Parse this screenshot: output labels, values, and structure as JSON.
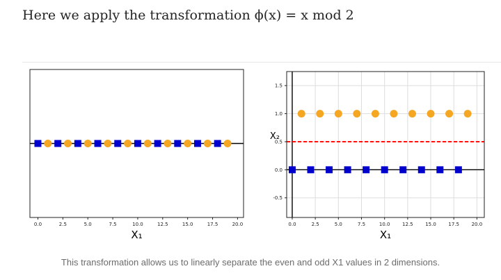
{
  "article": {
    "heading": "Here we apply the transformation ϕ(x) = x mod 2",
    "caption": "This transformation allows us to linearly separate the even and odd X1 values in 2 dimensions."
  },
  "chart_data": [
    {
      "type": "scatter",
      "title": "",
      "xlabel": "X₁",
      "ylabel": "",
      "xlim": [
        -0.8,
        20.6
      ],
      "xticks": [
        "0.0",
        "2.5",
        "5.0",
        "7.5",
        "10.0",
        "12.5",
        "15.0",
        "17.5",
        "20.0"
      ],
      "grid": false,
      "series": [
        {
          "marker": "square",
          "color": "#0000cc",
          "x": [
            0,
            2,
            4,
            6,
            8,
            10,
            12,
            14,
            16,
            18
          ],
          "y": [
            0,
            0,
            0,
            0,
            0,
            0,
            0,
            0,
            0,
            0
          ]
        },
        {
          "marker": "circle",
          "color": "#f5a623",
          "x": [
            1,
            3,
            5,
            7,
            9,
            11,
            13,
            15,
            17,
            19
          ],
          "y": [
            0,
            0,
            0,
            0,
            0,
            0,
            0,
            0,
            0,
            0
          ]
        }
      ],
      "lines": [
        {
          "orientation": "horizontal",
          "y": 0,
          "color": "#000000",
          "style": "solid"
        }
      ]
    },
    {
      "type": "scatter",
      "title": "",
      "xlabel": "X₁",
      "ylabel": "X₂",
      "xlim": [
        -0.6,
        20.8
      ],
      "ylim": [
        -0.85,
        1.75
      ],
      "xticks": [
        "0.0",
        "2.5",
        "5.0",
        "7.5",
        "10.0",
        "12.5",
        "15.0",
        "17.5",
        "20.0"
      ],
      "yticks": [
        "1.5",
        "1.0",
        "0.5",
        "0.0",
        "-0.5"
      ],
      "grid": true,
      "series": [
        {
          "marker": "square",
          "color": "#0000cc",
          "x": [
            0,
            2,
            4,
            6,
            8,
            10,
            12,
            14,
            16,
            18
          ],
          "y": [
            0,
            0,
            0,
            0,
            0,
            0,
            0,
            0,
            0,
            0
          ]
        },
        {
          "marker": "circle",
          "color": "#f5a623",
          "x": [
            1,
            3,
            5,
            7,
            9,
            11,
            13,
            15,
            17,
            19
          ],
          "y": [
            1,
            1,
            1,
            1,
            1,
            1,
            1,
            1,
            1,
            1
          ]
        }
      ],
      "lines": [
        {
          "orientation": "horizontal",
          "y": 0,
          "color": "#000000",
          "style": "solid"
        },
        {
          "orientation": "vertical",
          "x": 0,
          "color": "#000000",
          "style": "solid"
        },
        {
          "orientation": "horizontal",
          "y": 0.5,
          "color": "#ff0000",
          "style": "dashed"
        }
      ]
    }
  ]
}
